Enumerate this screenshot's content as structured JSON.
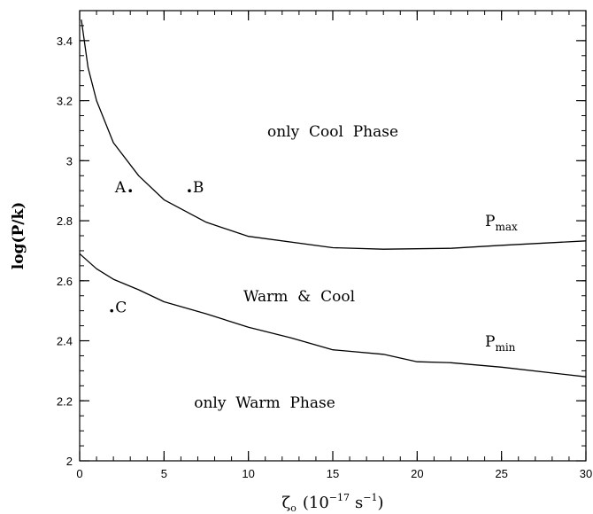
{
  "chart_data": {
    "type": "line",
    "xlim": [
      0,
      30
    ],
    "ylim": [
      2,
      3.5
    ],
    "x_ticks": [
      0,
      5,
      10,
      15,
      20,
      25,
      30
    ],
    "y_ticks": [
      2,
      2.2,
      2.4,
      2.6,
      2.8,
      3,
      3.2,
      3.4
    ],
    "x_tick_labels": [
      "0",
      "5",
      "10",
      "15",
      "20",
      "25",
      "30"
    ],
    "y_tick_labels": [
      "2",
      "2.2",
      "2.4",
      "2.6",
      "2.8",
      "3",
      "3.2",
      "3.4"
    ],
    "xlabel": {
      "symbol": "ζ",
      "symbol_sub": "o",
      "open": "(10",
      "exp1": "−17",
      "mid": "s",
      "exp2": "−1",
      "close": ")"
    },
    "ylabel": "log(P/k)",
    "grid": false,
    "series": [
      {
        "label_main": "P",
        "label_sub": "max",
        "x": [
          0.1,
          0.5,
          1,
          2,
          3.5,
          5,
          7.5,
          10,
          15,
          18,
          22,
          25,
          30
        ],
        "y": [
          3.47,
          3.31,
          3.2,
          3.06,
          2.95,
          2.87,
          2.795,
          2.748,
          2.71,
          2.705,
          2.708,
          2.718,
          2.733
        ]
      },
      {
        "label_main": "P",
        "label_sub": "min",
        "x": [
          0,
          0.5,
          1,
          2,
          3.5,
          5,
          7.5,
          10,
          12.5,
          15,
          18,
          20,
          22,
          25,
          30
        ],
        "y": [
          2.69,
          2.665,
          2.64,
          2.605,
          2.57,
          2.53,
          2.49,
          2.445,
          2.41,
          2.37,
          2.355,
          2.33,
          2.327,
          2.312,
          2.28
        ]
      }
    ],
    "points": [
      {
        "name": "A",
        "x": 3.0,
        "y": 2.9
      },
      {
        "name": "B",
        "x": 6.5,
        "y": 2.9
      },
      {
        "name": "C",
        "x": 1.9,
        "y": 2.5
      }
    ],
    "annotations": {
      "cool": "only  Cool  Phase",
      "mixed": "Warm  &  Cool",
      "warm": "only  Warm  Phase"
    }
  }
}
